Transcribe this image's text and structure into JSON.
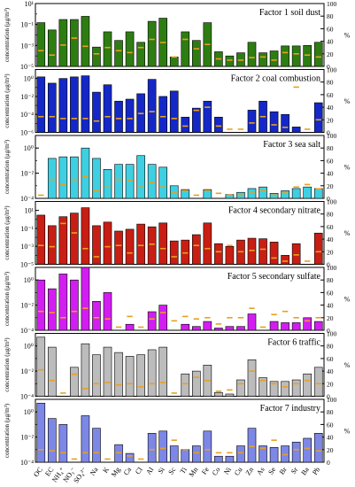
{
  "chart_data": {
    "type": "bar",
    "ylabel": "concentration (μg/m³)",
    "ylabel2": "%",
    "y_scale": "log",
    "right_axis_range": [
      0,
      100
    ],
    "right_ticks": [
      "0",
      "20",
      "40",
      "60",
      "80",
      "100"
    ],
    "categories": [
      "OC",
      "EC",
      "NH₄⁺",
      "NO₃⁻",
      "SO₄²⁻",
      "Na",
      "K",
      "Mg",
      "Ca",
      "Cl",
      "Al",
      "Si",
      "Sc",
      "Ti",
      "Mn",
      "Fe",
      "Co",
      "Ni",
      "Cu",
      "Zn",
      "As",
      "Se",
      "Br",
      "Sr",
      "Ba",
      "Pb"
    ],
    "marker_color": "#e8a020",
    "panels": [
      {
        "title": "Factor 1 soil dust",
        "color": "#2e7d12",
        "y_ticks": [
          "10⁻⁵",
          "10⁻³",
          "10⁻¹",
          "10¹"
        ],
        "log_range": [
          -5,
          1
        ],
        "values": [
          0.15,
          0.03,
          0.3,
          0.3,
          0.6,
          0.0007,
          0.02,
          0.003,
          0.02,
          0.002,
          0.2,
          0.4,
          8e-05,
          0.02,
          0.003,
          0.15,
          0.00025,
          0.0001,
          0.0002,
          0.002,
          0.0002,
          0.0003,
          0.0009,
          0.0009,
          0.001,
          0.002
        ],
        "percent": [
          25,
          18,
          34,
          45,
          32,
          20,
          30,
          25,
          22,
          30,
          43,
          38,
          15,
          43,
          28,
          35,
          12,
          10,
          10,
          14,
          15,
          10,
          22,
          20,
          18,
          15
        ]
      },
      {
        "title": "Factor 2 coal combustion",
        "color": "#1428c8",
        "y_ticks": [
          "10⁻⁶",
          "10⁻⁴",
          "10⁻²",
          "10⁰"
        ],
        "log_range": [
          -6,
          1
        ],
        "values": [
          1.5,
          0.3,
          1.0,
          1.5,
          2.0,
          0.03,
          0.2,
          0.003,
          0.005,
          0.02,
          0.8,
          0.01,
          0.04,
          5e-05,
          0.0005,
          0.003,
          5e-05,
          1e-06,
          1e-06,
          0.0003,
          0.003,
          0.0002,
          0.0001,
          4e-06,
          1e-06,
          0.002
        ],
        "percent": [
          25,
          25,
          22,
          22,
          22,
          18,
          25,
          22,
          22,
          30,
          33,
          25,
          22,
          10,
          35,
          40,
          10,
          5,
          5,
          15,
          25,
          12,
          8,
          72,
          5,
          20
        ]
      },
      {
        "title": "Factor 3 sea salt",
        "color": "#3ed0e2",
        "y_ticks": [
          "10⁻⁴",
          "10⁻²",
          "10⁰"
        ],
        "log_range": [
          -4,
          1
        ],
        "values": [
          1e-06,
          0.15,
          0.2,
          0.2,
          1.0,
          0.15,
          0.02,
          0.05,
          0.05,
          0.25,
          0.05,
          0.03,
          0.001,
          0.0005,
          1e-06,
          0.0005,
          0.0001,
          0.0002,
          0.0003,
          0.0006,
          0.0008,
          0.00025,
          0.0004,
          0.0006,
          0.0008,
          0.0006
        ],
        "percent": [
          5,
          30,
          22,
          30,
          35,
          12,
          20,
          30,
          28,
          20,
          25,
          18,
          10,
          12,
          5,
          12,
          8,
          5,
          5,
          10,
          12,
          5,
          10,
          18,
          22,
          15
        ]
      },
      {
        "title": "Factor 4 secondary nitrate",
        "color": "#c81e14",
        "y_ticks": [
          "10⁻⁵",
          "10⁻³",
          "10⁻¹",
          "10¹"
        ],
        "log_range": [
          -5,
          2
        ],
        "values": [
          3.0,
          0.2,
          2.0,
          5.0,
          20.0,
          0.2,
          0.5,
          0.05,
          0.08,
          0.3,
          0.15,
          0.4,
          0.004,
          0.005,
          0.02,
          0.4,
          0.002,
          0.001,
          0.005,
          0.008,
          0.007,
          0.003,
          0.0001,
          0.002,
          1e-06,
          0.03
        ],
        "percent": [
          30,
          28,
          65,
          50,
          25,
          12,
          28,
          30,
          18,
          30,
          32,
          25,
          12,
          18,
          30,
          25,
          20,
          30,
          20,
          22,
          24,
          10,
          5,
          15,
          5,
          20
        ]
      },
      {
        "title": "Factor 5 secondary sulfate",
        "color": "#d21ef0",
        "y_ticks": [
          "10⁻⁴",
          "10⁻²",
          "10⁰"
        ],
        "log_range": [
          -4,
          1
        ],
        "values": [
          1.0,
          0.2,
          3.0,
          1.0,
          10.0,
          0.02,
          0.1,
          1e-06,
          0.0003,
          1e-06,
          0.003,
          0.01,
          0.0001,
          0.0003,
          0.0002,
          0.0005,
          0.00015,
          0.0002,
          0.0002,
          0.002,
          1e-06,
          0.0005,
          0.0004,
          0.0004,
          0.001,
          0.0005
        ],
        "percent": [
          30,
          28,
          20,
          30,
          35,
          20,
          18,
          5,
          22,
          5,
          18,
          28,
          15,
          22,
          18,
          20,
          10,
          20,
          20,
          35,
          5,
          25,
          30,
          20,
          15,
          20
        ]
      },
      {
        "title": "Factor 6 traffic",
        "color": "#bcbcbc",
        "y_ticks": [
          "10⁻⁴",
          "10⁻²",
          "10⁰"
        ],
        "log_range": [
          -4,
          1
        ],
        "values": [
          5.0,
          0.8,
          0.0001,
          0.02,
          1.5,
          0.2,
          0.8,
          0.3,
          0.15,
          0.2,
          0.5,
          0.8,
          1e-06,
          0.006,
          0.01,
          0.03,
          0.0002,
          0.00015,
          0.002,
          0.08,
          0.003,
          0.0015,
          0.0015,
          0.002,
          0.006,
          0.02
        ],
        "percent": [
          42,
          25,
          5,
          35,
          12,
          20,
          22,
          18,
          20,
          15,
          20,
          22,
          5,
          20,
          30,
          25,
          8,
          10,
          20,
          40,
          25,
          20,
          15,
          20,
          25,
          20
        ]
      },
      {
        "title": "Factor 7 industry",
        "color": "#7d87e6",
        "y_ticks": [
          "10⁻⁴",
          "10⁻²",
          "10⁰"
        ],
        "log_range": [
          -4,
          1
        ],
        "values": [
          5.0,
          0.3,
          0.1,
          1e-06,
          0.5,
          0.05,
          1e-06,
          0.0025,
          0.0005,
          1e-06,
          0.02,
          0.03,
          0.002,
          0.001,
          0.002,
          0.03,
          0.0003,
          0.0003,
          0.002,
          0.05,
          0.002,
          0.0015,
          0.002,
          0.004,
          0.008,
          0.02
        ],
        "percent": [
          20,
          18,
          15,
          5,
          15,
          15,
          5,
          15,
          10,
          5,
          20,
          22,
          35,
          20,
          15,
          20,
          15,
          15,
          15,
          25,
          22,
          35,
          12,
          20,
          22,
          18
        ]
      }
    ]
  }
}
